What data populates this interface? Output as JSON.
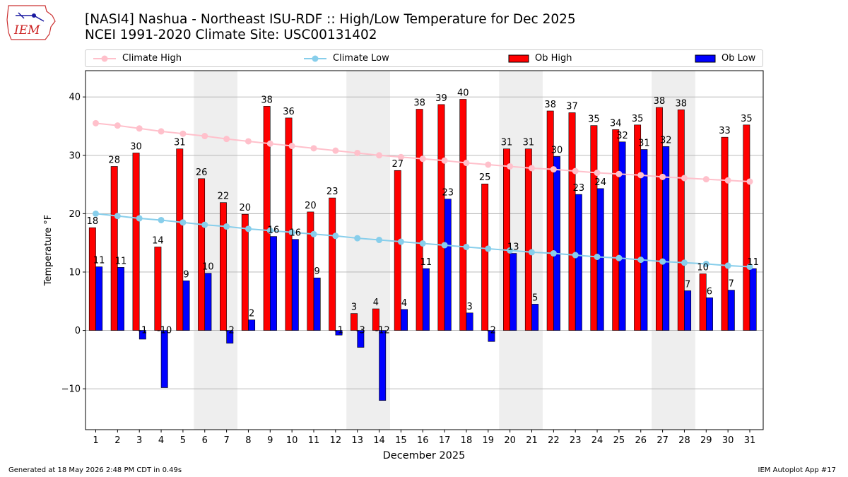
{
  "title_line1": "[NASI4] Nashua - Northeast ISU-RDF :: High/Low Temperature for Dec 2025",
  "title_line2": "NCEI 1991-2020 Climate Site: USC00131402",
  "logo_text": "IEM",
  "footer_left": "Generated at 18 May 2026 2:48 PM CDT in 0.49s",
  "footer_right": "IEM Autoplot App #17",
  "colors": {
    "ob_high": "#ff0000",
    "ob_low": "#0000ff",
    "climate_high": "#ffc0cb",
    "climate_low": "#87ceeb",
    "weekend_shade": "#eeeeee",
    "grid": "#b0b0b0"
  },
  "chart_data": {
    "type": "bar",
    "xlabel": "December 2025",
    "ylabel": "Temperature °F",
    "ylim": [
      -17,
      44.5
    ],
    "yticks": [
      -10,
      0,
      10,
      20,
      30,
      40
    ],
    "grid": "horizontal",
    "legend_position": "top",
    "categories": [
      1,
      2,
      3,
      4,
      5,
      6,
      7,
      8,
      9,
      10,
      11,
      12,
      13,
      14,
      15,
      16,
      17,
      18,
      19,
      20,
      21,
      22,
      23,
      24,
      25,
      26,
      27,
      28,
      29,
      30,
      31
    ],
    "shaded_days": [
      6,
      7,
      13,
      14,
      20,
      21,
      27,
      28
    ],
    "series": [
      {
        "name": "Climate High",
        "kind": "line",
        "values": [
          35.5,
          35.1,
          34.6,
          34.1,
          33.7,
          33.3,
          32.8,
          32.4,
          32.0,
          31.6,
          31.2,
          30.8,
          30.4,
          30.0,
          29.7,
          29.4,
          29.1,
          28.7,
          28.4,
          28.1,
          27.8,
          27.6,
          27.3,
          27.0,
          26.8,
          26.6,
          26.3,
          26.1,
          25.9,
          25.7,
          25.5
        ]
      },
      {
        "name": "Climate Low",
        "kind": "line",
        "values": [
          20.0,
          19.6,
          19.2,
          18.9,
          18.5,
          18.1,
          17.8,
          17.4,
          17.1,
          16.8,
          16.5,
          16.2,
          15.8,
          15.5,
          15.2,
          14.9,
          14.6,
          14.3,
          14.0,
          13.7,
          13.4,
          13.2,
          12.9,
          12.6,
          12.4,
          12.1,
          11.8,
          11.6,
          11.4,
          11.1,
          10.9
        ]
      },
      {
        "name": "Ob High",
        "kind": "bar",
        "values": [
          17.6,
          28.1,
          30.4,
          14.3,
          31.1,
          26.0,
          21.9,
          19.9,
          38.4,
          36.4,
          20.3,
          22.7,
          2.9,
          3.7,
          27.4,
          37.9,
          38.7,
          39.6,
          25.1,
          31.1,
          31.1,
          37.6,
          37.3,
          35.1,
          34.4,
          35.2,
          38.2,
          37.8,
          9.7,
          33.1,
          35.2
        ],
        "labels": [
          18,
          28,
          30,
          14,
          31,
          26,
          22,
          20,
          38,
          36,
          20,
          23,
          3,
          4,
          27,
          38,
          39,
          40,
          25,
          31,
          31,
          38,
          37,
          35,
          34,
          35,
          38,
          38,
          10,
          33,
          35
        ]
      },
      {
        "name": "Ob Low",
        "kind": "bar",
        "values": [
          10.9,
          10.8,
          -1.5,
          -9.8,
          8.5,
          9.8,
          -2.2,
          1.8,
          16.1,
          15.6,
          9.0,
          -0.8,
          -2.9,
          -12.0,
          3.6,
          10.6,
          22.5,
          3.0,
          -1.9,
          13.2,
          4.5,
          29.8,
          23.3,
          24.3,
          32.3,
          31.0,
          31.5,
          6.8,
          5.6,
          6.9,
          10.6
        ],
        "labels": [
          11,
          11,
          -1,
          -10,
          9,
          10,
          -2,
          2,
          16,
          16,
          9,
          -1,
          -3,
          -12,
          4,
          11,
          23,
          3,
          -2,
          13,
          5,
          30,
          23,
          24,
          32,
          31,
          32,
          7,
          6,
          7,
          11
        ]
      }
    ]
  }
}
